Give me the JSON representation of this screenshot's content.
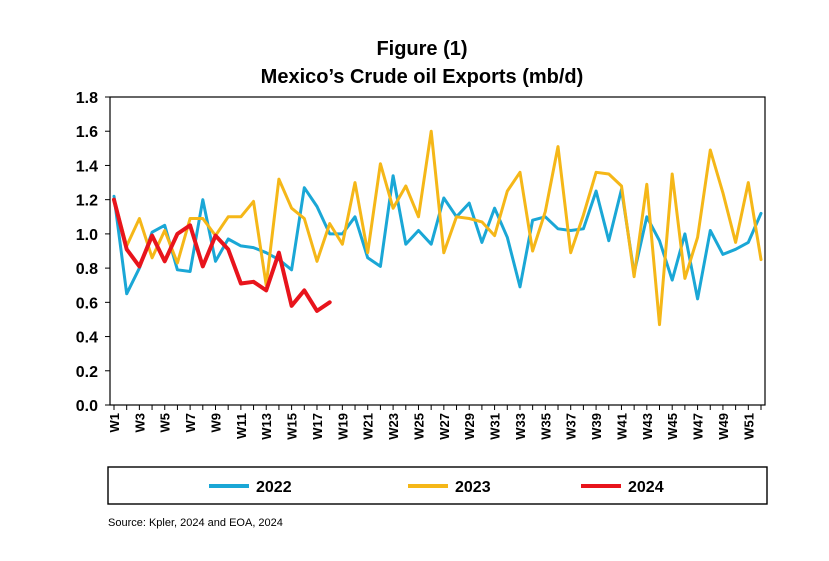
{
  "chart_data": {
    "type": "line",
    "title": "Figure (1)",
    "subtitle": "Mexico’s Crude oil Exports (mb/d)",
    "xlabel": "",
    "ylabel": "",
    "ylim": [
      0,
      1.8
    ],
    "yticks": [
      "0.0",
      "0.2",
      "0.4",
      "0.6",
      "0.8",
      "1.0",
      "1.2",
      "1.4",
      "1.6",
      "1.8"
    ],
    "yticks_values": [
      0,
      0.2,
      0.4,
      0.6,
      0.8,
      1.0,
      1.2,
      1.4,
      1.6,
      1.8
    ],
    "xticks": [
      "W1",
      "W3",
      "W5",
      "W7",
      "W9",
      "W11",
      "W13",
      "W15",
      "W17",
      "W19",
      "W21",
      "W23",
      "W25",
      "W27",
      "W29",
      "W31",
      "W33",
      "W35",
      "W37",
      "W39",
      "W41",
      "W43",
      "W45",
      "W47",
      "W49",
      "W51"
    ],
    "xticks_weeks": [
      1,
      3,
      5,
      7,
      9,
      11,
      13,
      15,
      17,
      19,
      21,
      23,
      25,
      27,
      29,
      31,
      33,
      35,
      37,
      39,
      41,
      43,
      45,
      47,
      49,
      51
    ],
    "x_range": [
      1,
      52
    ],
    "grid": false,
    "legend_position": "bottom",
    "series": [
      {
        "name": "2022",
        "color": "#1aa7d6",
        "x": [
          1,
          2,
          3,
          4,
          5,
          6,
          7,
          8,
          9,
          10,
          11,
          12,
          13,
          14,
          15,
          16,
          17,
          18,
          19,
          20,
          21,
          22,
          23,
          24,
          25,
          26,
          27,
          28,
          29,
          30,
          31,
          32,
          33,
          34,
          35,
          36,
          37,
          38,
          39,
          40,
          41,
          42,
          43,
          44,
          45,
          46,
          47,
          48,
          49,
          50,
          51,
          52
        ],
        "values": [
          1.22,
          0.65,
          0.8,
          1.01,
          1.05,
          0.79,
          0.78,
          1.2,
          0.84,
          0.97,
          0.93,
          0.92,
          0.89,
          0.85,
          0.79,
          1.27,
          1.16,
          1.0,
          1.0,
          1.1,
          0.86,
          0.81,
          1.34,
          0.94,
          1.02,
          0.94,
          1.21,
          1.1,
          1.18,
          0.95,
          1.15,
          0.98,
          0.69,
          1.08,
          1.1,
          1.03,
          1.02,
          1.03,
          1.25,
          0.96,
          1.26,
          0.77,
          1.1,
          0.96,
          0.73,
          1.0,
          0.62,
          1.02,
          0.88,
          0.91,
          0.95,
          1.12
        ]
      },
      {
        "name": "2023",
        "color": "#f5b718",
        "x": [
          1,
          2,
          3,
          4,
          5,
          6,
          7,
          8,
          9,
          10,
          11,
          12,
          13,
          14,
          15,
          16,
          17,
          18,
          19,
          20,
          21,
          22,
          23,
          24,
          25,
          26,
          27,
          28,
          29,
          30,
          31,
          32,
          33,
          34,
          35,
          36,
          37,
          38,
          39,
          40,
          41,
          42,
          43,
          44,
          45,
          46,
          47,
          48,
          49,
          50,
          51,
          52
        ],
        "values": [
          1.2,
          0.93,
          1.09,
          0.86,
          1.02,
          0.83,
          1.09,
          1.09,
          0.99,
          1.1,
          1.1,
          1.19,
          0.7,
          1.32,
          1.15,
          1.09,
          0.84,
          1.06,
          0.94,
          1.3,
          0.89,
          1.41,
          1.15,
          1.28,
          1.1,
          1.6,
          0.89,
          1.1,
          1.09,
          1.07,
          0.99,
          1.25,
          1.36,
          0.9,
          1.13,
          1.51,
          0.89,
          1.11,
          1.36,
          1.35,
          1.28,
          0.75,
          1.29,
          0.47,
          1.35,
          0.74,
          0.98,
          1.49,
          1.24,
          0.95,
          1.3,
          0.85
        ]
      },
      {
        "name": "2024",
        "color": "#e8141c",
        "x": [
          1,
          2,
          3,
          4,
          5,
          6,
          7,
          8,
          9,
          10,
          11,
          12,
          13,
          14,
          15,
          16,
          17,
          18
        ],
        "values": [
          1.2,
          0.91,
          0.81,
          0.99,
          0.84,
          1.0,
          1.05,
          0.81,
          0.99,
          0.91,
          0.71,
          0.72,
          0.67,
          0.89,
          0.58,
          0.67,
          0.55,
          0.6
        ]
      }
    ]
  },
  "source_text": "Source: Kpler, 2024 and EOA, 2024"
}
